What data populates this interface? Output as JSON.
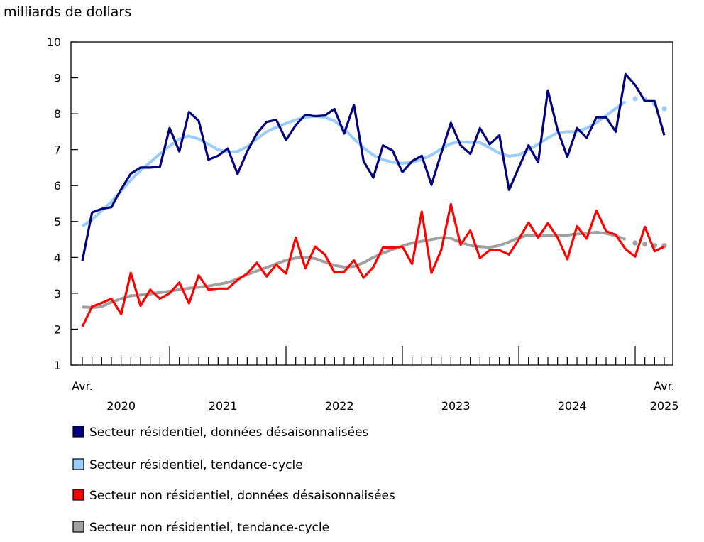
{
  "chart_data": {
    "type": "line",
    "ylabel": "milliards de dollars",
    "ylim": [
      1,
      10
    ],
    "yticks": [
      "1",
      "2",
      "3",
      "4",
      "5",
      "6",
      "7",
      "8",
      "9",
      "10"
    ],
    "x_start": "2020-04",
    "x_end": "2025-04",
    "x_edge_labels": [
      "Avr.",
      "Avr."
    ],
    "year_labels": [
      "2020",
      "2021",
      "2022",
      "2023",
      "2024",
      "2025"
    ],
    "grid": false,
    "legend_placement": "bottom",
    "dotted_last_n_trend": 4,
    "series": [
      {
        "name": "Secteur résidentiel, données désaisonnalisées",
        "color": "#000080",
        "values": [
          3.9,
          5.25,
          5.35,
          5.4,
          5.9,
          6.33,
          6.5,
          6.5,
          6.52,
          7.6,
          6.95,
          8.05,
          7.8,
          6.72,
          6.83,
          7.03,
          6.32,
          6.95,
          7.45,
          7.77,
          7.83,
          7.27,
          7.68,
          7.97,
          7.93,
          7.95,
          8.13,
          7.45,
          8.25,
          6.68,
          6.22,
          7.12,
          6.97,
          6.37,
          6.68,
          6.83,
          6.02,
          6.9,
          7.75,
          7.12,
          6.88,
          7.6,
          7.15,
          7.4,
          5.88,
          6.5,
          7.12,
          6.65,
          8.65,
          7.55,
          6.8,
          7.6,
          7.33,
          7.9,
          7.9,
          7.5,
          9.1,
          8.8,
          8.35,
          8.35,
          7.4
        ]
      },
      {
        "name": "Secteur résidentiel, tendance-cycle",
        "color": "#99ccff",
        "values": [
          4.87,
          5.05,
          5.3,
          5.55,
          5.85,
          6.15,
          6.42,
          6.65,
          6.88,
          7.1,
          7.3,
          7.38,
          7.3,
          7.15,
          7.0,
          6.93,
          6.95,
          7.08,
          7.3,
          7.5,
          7.62,
          7.73,
          7.83,
          7.9,
          7.93,
          7.9,
          7.8,
          7.58,
          7.3,
          7.05,
          6.85,
          6.72,
          6.65,
          6.62,
          6.65,
          6.73,
          6.85,
          7.02,
          7.17,
          7.22,
          7.2,
          7.2,
          7.05,
          6.9,
          6.82,
          6.85,
          7.0,
          7.15,
          7.33,
          7.47,
          7.5,
          7.5,
          7.6,
          7.75,
          7.95,
          8.15,
          8.34,
          8.42,
          8.4,
          8.28,
          8.14
        ]
      },
      {
        "name": "Secteur non résidentiel, données désaisonnalisées",
        "color": "#ff0000",
        "values": [
          2.07,
          2.63,
          2.73,
          2.85,
          2.42,
          3.57,
          2.65,
          3.1,
          2.85,
          3.0,
          3.3,
          2.72,
          3.5,
          3.1,
          3.13,
          3.13,
          3.37,
          3.55,
          3.85,
          3.47,
          3.8,
          3.55,
          4.55,
          3.7,
          4.3,
          4.08,
          3.58,
          3.6,
          3.92,
          3.43,
          3.73,
          4.28,
          4.27,
          4.3,
          3.82,
          5.27,
          3.57,
          4.2,
          5.48,
          4.35,
          4.75,
          3.98,
          4.2,
          4.2,
          4.08,
          4.5,
          4.97,
          4.55,
          4.95,
          4.55,
          3.95,
          4.87,
          4.52,
          5.3,
          4.73,
          4.63,
          4.23,
          4.02,
          4.85,
          4.17,
          4.3
        ]
      },
      {
        "name": "Secteur non résidentiel, tendance-cycle",
        "color": "#a0a0a0",
        "values": [
          2.62,
          2.6,
          2.63,
          2.75,
          2.85,
          2.93,
          2.95,
          2.98,
          3.02,
          3.06,
          3.1,
          3.14,
          3.17,
          3.2,
          3.25,
          3.3,
          3.4,
          3.52,
          3.62,
          3.72,
          3.82,
          3.92,
          3.98,
          4.0,
          3.97,
          3.87,
          3.78,
          3.73,
          3.75,
          3.85,
          4.0,
          4.12,
          4.22,
          4.32,
          4.4,
          4.45,
          4.5,
          4.55,
          4.53,
          4.42,
          4.33,
          4.3,
          4.28,
          4.33,
          4.43,
          4.55,
          4.62,
          4.62,
          4.62,
          4.62,
          4.62,
          4.65,
          4.67,
          4.7,
          4.67,
          4.6,
          4.5,
          4.4,
          4.37,
          4.33,
          4.33
        ]
      }
    ]
  }
}
